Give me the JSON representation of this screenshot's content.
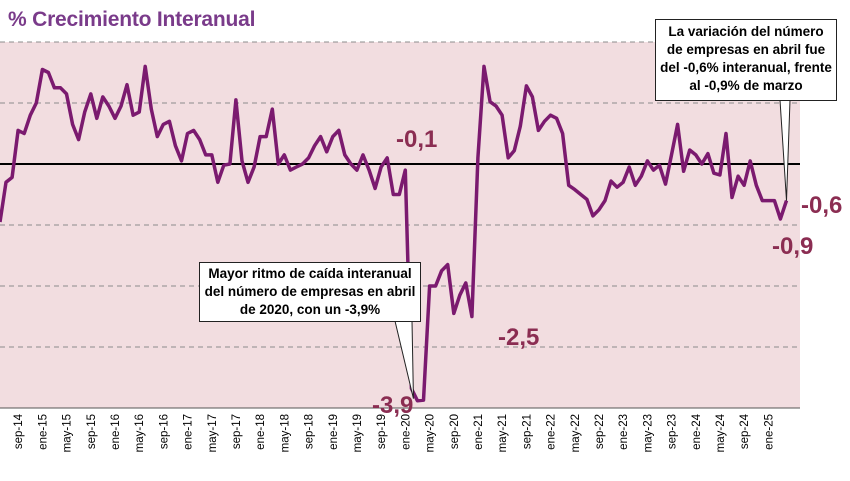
{
  "title": "% Crecimiento Interanual",
  "callouts": {
    "top": "La variación del número de empresas en abril fue del -0,6% interanual, frente al -0,9% de marzo",
    "mid": "Mayor ritmo de caída interanual del número de empresas en abril de 2020, con un -3,9%"
  },
  "annotations": {
    "a1": "-0,1",
    "a2": "-3,9",
    "a3": "-2,5",
    "a4": "-0,6",
    "a5": "-0,9"
  },
  "colors": {
    "plot_bg": "#f2dde0",
    "line": "#7b1a6f",
    "zero_line": "#000000",
    "title": "#7a3b8a",
    "annotation": "#8b2d52",
    "grid": "#8c8c8c"
  },
  "chart_data": {
    "type": "line",
    "title": "% Crecimiento Interanual",
    "xlabel": "",
    "ylabel": "",
    "ylim": [
      -4.0,
      2.0
    ],
    "grid": true,
    "legend": "none",
    "tick_labels": [
      "sep-14",
      "ene-15",
      "may-15",
      "sep-15",
      "ene-16",
      "may-16",
      "sep-16",
      "ene-17",
      "may-17",
      "sep-17",
      "ene-18",
      "may-18",
      "sep-18",
      "ene-19",
      "may-19",
      "sep-19",
      "ene-20",
      "may-20",
      "sep-20",
      "ene-21",
      "may-21",
      "sep-21",
      "ene-22",
      "may-22",
      "sep-22",
      "ene-23",
      "may-23",
      "sep-23",
      "ene-24",
      "may-24",
      "sep-24",
      "ene-25"
    ],
    "first_period": "jun-14",
    "last_period": "abr-25",
    "series": [
      {
        "values": [
          -0.95,
          -0.3,
          -0.22,
          0.55,
          0.5,
          0.8,
          1.0,
          1.55,
          1.5,
          1.25,
          1.25,
          1.15,
          0.65,
          0.4,
          0.85,
          1.15,
          0.75,
          1.1,
          0.95,
          0.75,
          0.95,
          1.3,
          0.8,
          0.85,
          1.6,
          0.9,
          0.45,
          0.65,
          0.7,
          0.3,
          0.05,
          0.5,
          0.55,
          0.4,
          0.15,
          0.15,
          -0.3,
          -0.02,
          0.0,
          1.05,
          0.05,
          -0.3,
          -0.05,
          0.45,
          0.45,
          0.9,
          0.0,
          0.15,
          -0.1,
          -0.05,
          0.0,
          0.1,
          0.3,
          0.45,
          0.2,
          0.45,
          0.55,
          0.15,
          0.0,
          -0.1,
          0.15,
          -0.1,
          -0.4,
          -0.05,
          0.1,
          -0.5,
          -0.5,
          -0.1,
          -3.68,
          -3.88,
          -3.87,
          -2.0,
          -2.0,
          -1.75,
          -1.65,
          -2.45,
          -2.15,
          -1.95,
          -2.5,
          0.1,
          1.6,
          1.02,
          0.95,
          0.8,
          0.1,
          0.22,
          0.62,
          1.28,
          1.1,
          0.55,
          0.7,
          0.8,
          0.75,
          0.5,
          -0.35,
          -0.42,
          -0.5,
          -0.58,
          -0.85,
          -0.75,
          -0.6,
          -0.28,
          -0.38,
          -0.3,
          -0.05,
          -0.35,
          -0.2,
          0.05,
          -0.1,
          -0.02,
          -0.33,
          0.15,
          0.65,
          -0.12,
          0.23,
          0.15,
          0.0,
          0.17,
          -0.15,
          -0.18,
          0.5,
          -0.55,
          -0.2,
          -0.35,
          0.05,
          -0.35,
          -0.6,
          -0.6,
          -0.6,
          -0.9,
          -0.6
        ],
        "color": "#7b1a6f"
      }
    ]
  }
}
